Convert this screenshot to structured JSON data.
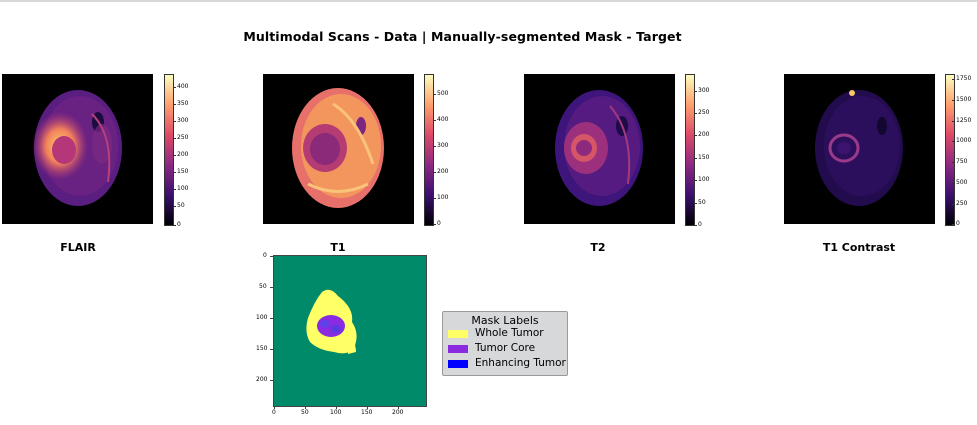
{
  "figure": {
    "suptitle": "Multimodal Scans - Data | Manually-segmented Mask - Target"
  },
  "panels": [
    {
      "title": "FLAIR",
      "colorbar_ticks": [
        "400",
        "350",
        "300",
        "250",
        "200",
        "150",
        "100",
        "50",
        "0"
      ],
      "colormap": "magma"
    },
    {
      "title": "T1",
      "colorbar_ticks": [
        "500",
        "400",
        "300",
        "200",
        "100",
        "0"
      ],
      "colormap": "magma"
    },
    {
      "title": "T2",
      "colorbar_ticks": [
        "300",
        "250",
        "200",
        "150",
        "100",
        "50",
        "0"
      ],
      "colormap": "magma"
    },
    {
      "title": "T1 Contrast",
      "colorbar_ticks": [
        "1750",
        "1500",
        "1250",
        "1000",
        "750",
        "500",
        "250",
        "0"
      ],
      "colormap": "magma"
    }
  ],
  "mask": {
    "y_ticks": [
      "0",
      "50",
      "100",
      "150",
      "200"
    ],
    "x_ticks": [
      "0",
      "50",
      "100",
      "150",
      "200"
    ],
    "background_color": "#008a6a"
  },
  "legend": {
    "title": "Mask Labels",
    "items": [
      {
        "label": "Whole Tumor",
        "color": "#ffff66"
      },
      {
        "label": "Tumor Core",
        "color": "#8a2be2"
      },
      {
        "label": "Enhancing Tumor",
        "color": "#0000ff"
      }
    ]
  }
}
